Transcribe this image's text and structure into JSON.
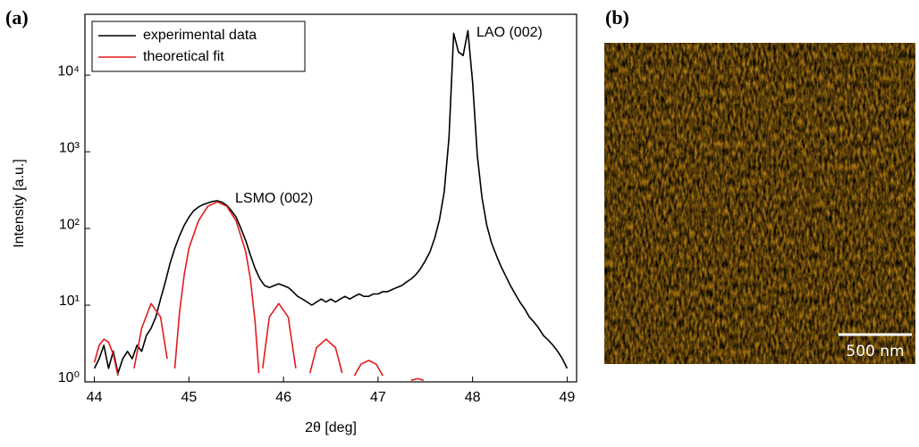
{
  "chart_data": {
    "type": "line",
    "panel_labels": [
      "(a)",
      "(b)"
    ],
    "xlabel": "2θ [deg]",
    "ylabel": "Intensity [a.u.]",
    "xlim": [
      43.9,
      49.1
    ],
    "ylim": [
      1,
      62000
    ],
    "log_y": true,
    "xticks": [
      44,
      45,
      46,
      47,
      48,
      49
    ],
    "yticks": [
      {
        "value": 1,
        "label": "10⁰"
      },
      {
        "value": 10,
        "label": "10¹"
      },
      {
        "value": 100,
        "label": "10²"
      },
      {
        "value": 1000,
        "label": "10³"
      },
      {
        "value": 10000,
        "label": "10⁴"
      }
    ],
    "legend": "upper left",
    "annotations": [
      "LSMO (002)",
      "LAO (002)"
    ],
    "scale_bar": "500 nm",
    "series": [
      {
        "name": "experimental data",
        "color": "#000000",
        "x": [
          44.0,
          44.05,
          44.1,
          44.15,
          44.2,
          44.25,
          44.3,
          44.35,
          44.4,
          44.45,
          44.5,
          44.55,
          44.6,
          44.65,
          44.7,
          44.75,
          44.8,
          44.85,
          44.9,
          44.95,
          45.0,
          45.05,
          45.1,
          45.15,
          45.2,
          45.25,
          45.3,
          45.35,
          45.4,
          45.45,
          45.5,
          45.55,
          45.6,
          45.65,
          45.7,
          45.75,
          45.8,
          45.85,
          45.9,
          45.95,
          46.0,
          46.05,
          46.1,
          46.15,
          46.2,
          46.25,
          46.3,
          46.35,
          46.4,
          46.45,
          46.5,
          46.55,
          46.6,
          46.65,
          46.7,
          46.75,
          46.8,
          46.85,
          46.9,
          46.95,
          47.0,
          47.05,
          47.1,
          47.15,
          47.2,
          47.25,
          47.3,
          47.35,
          47.4,
          47.45,
          47.5,
          47.55,
          47.6,
          47.65,
          47.7,
          47.75,
          47.8,
          47.85,
          47.9,
          47.95,
          48.0,
          48.05,
          48.1,
          48.15,
          48.2,
          48.25,
          48.3,
          48.35,
          48.4,
          48.45,
          48.5,
          48.55,
          48.6,
          48.65,
          48.7,
          48.75,
          48.8,
          48.85,
          48.9,
          48.95,
          49.0
        ],
        "values": [
          1.5,
          2,
          3,
          1.5,
          2.5,
          1.3,
          2,
          2.5,
          2,
          3,
          2.5,
          4,
          5,
          7,
          12,
          20,
          35,
          55,
          80,
          110,
          140,
          170,
          190,
          205,
          215,
          225,
          230,
          220,
          200,
          170,
          140,
          100,
          70,
          45,
          30,
          22,
          18,
          17,
          18,
          19,
          18,
          17,
          15,
          13,
          12,
          11,
          10,
          11,
          12,
          11,
          12,
          11,
          12,
          13,
          12,
          13,
          14,
          13,
          13,
          14,
          14,
          15,
          15,
          16,
          17,
          18,
          20,
          22,
          25,
          30,
          38,
          50,
          75,
          130,
          300,
          1500,
          35000,
          20000,
          18000,
          38000,
          8000,
          900,
          250,
          110,
          65,
          45,
          32,
          24,
          18,
          14,
          11,
          9,
          7,
          6,
          5,
          4,
          3.5,
          3,
          2.5,
          2,
          1.5
        ]
      },
      {
        "name": "theoretical fit",
        "color": "#e31a1c",
        "x": [
          44.0,
          44.05,
          44.1,
          44.15,
          44.2,
          44.25,
          44.3,
          44.42,
          44.5,
          44.6,
          44.7,
          44.77,
          44.8,
          44.85,
          44.9,
          44.95,
          45.0,
          45.1,
          45.2,
          45.3,
          45.4,
          45.5,
          45.6,
          45.65,
          45.7,
          45.74,
          45.76,
          45.78,
          45.85,
          45.95,
          46.05,
          46.13,
          46.2,
          46.28,
          46.35,
          46.45,
          46.55,
          46.62,
          46.7,
          46.75,
          46.82,
          46.9,
          46.98,
          47.05,
          47.2,
          47.35,
          47.42,
          47.48
        ],
        "values": [
          1.8,
          3,
          3.6,
          3.3,
          2.3,
          1.2,
          null,
          1.5,
          5,
          10.5,
          7,
          2,
          null,
          1.5,
          8,
          25,
          55,
          125,
          195,
          222,
          195,
          125,
          50,
          22,
          6,
          1.3,
          null,
          1.5,
          7,
          10.5,
          7,
          1.5,
          null,
          1.3,
          2.8,
          3.6,
          2.8,
          1.3,
          null,
          1.2,
          1.7,
          1.9,
          1.7,
          1.2,
          null,
          1.05,
          1.1,
          1.05
        ]
      }
    ]
  }
}
